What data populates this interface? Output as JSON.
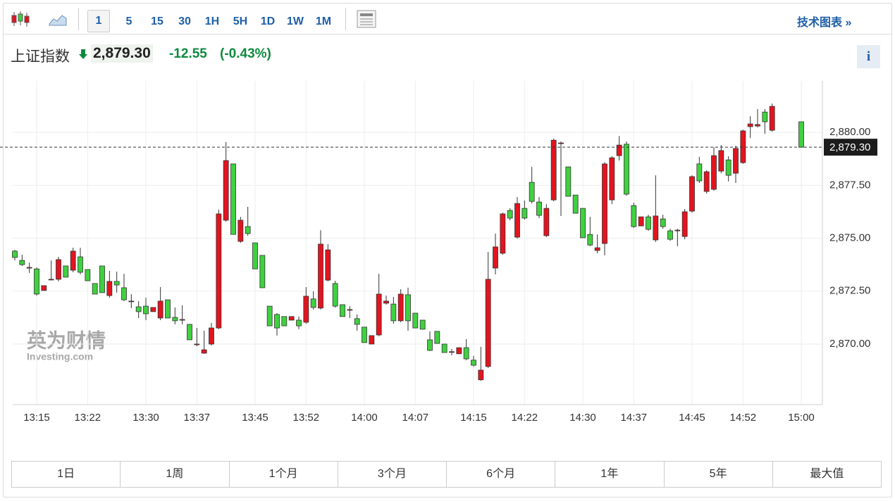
{
  "toolbar": {
    "intervals": [
      "1",
      "5",
      "15",
      "30",
      "1H",
      "5H",
      "1D",
      "1W",
      "1M"
    ],
    "link": "技术图表 »"
  },
  "header": {
    "name": "上证指数",
    "change": "-12.55",
    "change_pct": "(-0.43%)",
    "info": "i"
  },
  "watermark": {
    "brand": "英为财情",
    "site": "Investing.com"
  },
  "chart_data": {
    "type": "candlestick",
    "categories": [
      null,
      null,
      null,
      "13:15",
      null,
      null,
      null,
      null,
      null,
      null,
      "13:22",
      null,
      null,
      null,
      null,
      null,
      null,
      null,
      "13:30",
      null,
      null,
      null,
      null,
      null,
      null,
      "13:37",
      null,
      null,
      null,
      null,
      null,
      null,
      null,
      "13:45",
      null,
      null,
      null,
      null,
      null,
      null,
      "13:52",
      null,
      null,
      null,
      null,
      null,
      null,
      null,
      "14:00",
      null,
      null,
      null,
      null,
      null,
      null,
      "14:07",
      null,
      null,
      null,
      null,
      null,
      null,
      null,
      "14:15",
      null,
      null,
      null,
      null,
      null,
      null,
      "14:22",
      null,
      null,
      null,
      null,
      null,
      null,
      null,
      "14:30",
      null,
      null,
      null,
      null,
      null,
      null,
      "14:37",
      null,
      null,
      null,
      null,
      null,
      null,
      null,
      "14:45",
      null,
      null,
      null,
      null,
      null,
      null,
      "14:52",
      null,
      null,
      null,
      null,
      null,
      null,
      null,
      "15:00"
    ],
    "open": [
      2874.39,
      2873.95,
      2873.62,
      2873.55,
      2872.53,
      2873.06,
      2873.06,
      2873.69,
      2873.49,
      2874.12,
      2873.52,
      2872.86,
      2873.69,
      2872.29,
      2872.96,
      2872.66,
      2872.03,
      2871.76,
      2871.79,
      2871.53,
      2871.23,
      2872.09,
      2871.26,
      2871.16,
      2870.93,
      2870.0,
      2869.57,
      2870.0,
      2870.76,
      2875.85,
      2878.51,
      2874.85,
      2875.55,
      2874.78,
      2874.19,
      2871.79,
      2871.4,
      2871.3,
      2871.13,
      2871.13,
      2871.03,
      2872.13,
      2871.7,
      2873.02,
      2872.86,
      2871.86,
      2871.63,
      2871.2,
      2870.8,
      2870.0,
      2870.43,
      2871.93,
      2871.89,
      2871.1,
      2872.33,
      2871.46,
      2871.13,
      2870.2,
      2870.6,
      2870.0,
      2869.64,
      2869.54,
      2869.83,
      2869.24,
      2868.31,
      2868.94,
      2873.59,
      2874.29,
      2876.31,
      2875.05,
      2876.41,
      2877.64,
      2876.71,
      2875.12,
      2876.81,
      2879.5,
      2878.37,
      2877.04,
      2876.41,
      2875.18,
      2874.42,
      2874.75,
      2876.81,
      2878.9,
      2879.44,
      2876.54,
      2875.58,
      2876.01,
      2874.92,
      2875.91,
      2875.35,
      2875.38,
      2875.08,
      2876.28,
      2878.51,
      2877.21,
      2877.31,
      2878.17,
      2878.7,
      2878.07,
      2878.57,
      2880.27,
      2880.3,
      2880.96,
      2880.1,
      null,
      null,
      null,
      2880.5
    ],
    "high": [
      2874.45,
      2874.22,
      2873.85,
      2873.62,
      2872.76,
      2873.95,
      2874.12,
      2873.69,
      2874.55,
      2874.55,
      2873.52,
      2872.86,
      2873.69,
      2873.46,
      2873.42,
      2873.32,
      2872.36,
      2872.03,
      2872.19,
      2871.73,
      2872.69,
      2872.09,
      2871.73,
      2871.83,
      2870.93,
      2870.76,
      2870.63,
      2871.0,
      2876.35,
      2879.54,
      2878.51,
      2876.01,
      2876.48,
      2874.78,
      2874.19,
      2871.79,
      2871.46,
      2871.3,
      2871.3,
      2871.3,
      2872.69,
      2872.49,
      2875.38,
      2874.72,
      2872.99,
      2871.86,
      2871.79,
      2871.4,
      2870.8,
      2870.4,
      2873.32,
      2872.29,
      2872.23,
      2872.59,
      2872.66,
      2871.46,
      2871.13,
      2870.6,
      2870.6,
      2870.0,
      2869.77,
      2869.83,
      2870.23,
      2869.44,
      2869.87,
      2874.35,
      2875.22,
      2876.21,
      2876.41,
      2876.94,
      2876.78,
      2878.37,
      2876.94,
      2876.61,
      2879.7,
      2879.57,
      2878.37,
      2877.04,
      2876.41,
      2876.01,
      2875.18,
      2878.6,
      2878.87,
      2879.83,
      2879.57,
      2876.68,
      2876.01,
      2876.11,
      2877.97,
      2876.11,
      2875.45,
      2875.45,
      2876.38,
      2877.97,
      2878.84,
      2878.21,
      2879.3,
      2879.4,
      2878.87,
      2879.37,
      2880.13,
      2880.76,
      2881.1,
      2881.1,
      2881.36,
      null,
      null,
      null,
      2880.5
    ],
    "low": [
      2873.95,
      2873.69,
      2873.36,
      2872.29,
      2872.53,
      2873.02,
      2872.96,
      2873.16,
      2873.39,
      2873.29,
      2872.99,
      2872.36,
      2872.43,
      2872.19,
      2872.43,
      2872.03,
      2871.7,
      2871.23,
      2871.13,
      2871.53,
      2871.13,
      2871.23,
      2870.93,
      2870.93,
      2870.2,
      2869.9,
      2869.54,
      2869.93,
      2870.7,
      2875.78,
      2875.18,
      2874.78,
      2875.12,
      2873.55,
      2872.66,
      2870.86,
      2870.4,
      2870.86,
      2871.13,
      2870.7,
      2870.96,
      2871.63,
      2871.63,
      2872.96,
      2871.73,
      2871.3,
      2871.23,
      2870.63,
      2870.07,
      2870.0,
      2870.37,
      2871.86,
      2870.96,
      2871.03,
      2870.63,
      2870.76,
      2870.7,
      2869.67,
      2870.03,
      2869.6,
      2869.47,
      2869.54,
      2869.24,
      2868.94,
      2868.27,
      2868.87,
      2873.29,
      2874.22,
      2875.85,
      2874.98,
      2875.88,
      2876.64,
      2875.95,
      2875.05,
      2876.74,
      2876.05,
      2876.98,
      2876.18,
      2875.02,
      2874.62,
      2874.29,
      2874.19,
      2876.61,
      2878.67,
      2877.01,
      2875.48,
      2875.58,
      2875.35,
      2874.82,
      2875.45,
      2874.88,
      2874.62,
      2874.95,
      2876.21,
      2877.61,
      2877.11,
      2877.24,
      2878.07,
      2877.68,
      2877.61,
      2878.51,
      2879.73,
      2880.23,
      2879.93,
      2880.03,
      null,
      null,
      null,
      2879.3
    ],
    "close": [
      2874.09,
      2873.75,
      2873.62,
      2872.36,
      2872.76,
      2873.06,
      2873.99,
      2873.16,
      2874.39,
      2873.39,
      2872.99,
      2872.36,
      2872.43,
      2872.96,
      2872.79,
      2872.09,
      2872.03,
      2871.53,
      2871.43,
      2871.73,
      2872.03,
      2871.23,
      2871.1,
      2871.16,
      2870.2,
      2870.0,
      2869.73,
      2870.76,
      2876.15,
      2878.67,
      2875.18,
      2875.85,
      2875.22,
      2873.55,
      2872.66,
      2870.86,
      2870.76,
      2870.86,
      2871.3,
      2870.86,
      2872.26,
      2871.73,
      2874.72,
      2874.45,
      2871.79,
      2871.3,
      2871.63,
      2870.93,
      2870.07,
      2870.4,
      2872.36,
      2872.03,
      2871.1,
      2872.36,
      2871.1,
      2870.76,
      2870.7,
      2869.7,
      2870.03,
      2869.6,
      2869.64,
      2869.83,
      2869.3,
      2869.0,
      2868.77,
      2873.06,
      2874.59,
      2876.15,
      2875.95,
      2876.64,
      2875.95,
      2876.74,
      2876.08,
      2876.41,
      2879.63,
      2879.5,
      2876.98,
      2876.18,
      2875.02,
      2874.68,
      2874.55,
      2878.51,
      2878.8,
      2879.4,
      2877.08,
      2875.55,
      2876.01,
      2875.42,
      2876.05,
      2875.55,
      2874.95,
      2875.38,
      2876.25,
      2877.91,
      2877.71,
      2878.14,
      2878.9,
      2879.14,
      2877.97,
      2879.24,
      2880.07,
      2880.4,
      2880.37,
      2880.5,
      2881.23,
      null,
      null,
      null,
      2879.3
    ],
    "up_color": "#e3141f",
    "down_color": "#3fd13f",
    "ylim": [
      2867.14,
      2882.43
    ],
    "yticks": [
      {
        "value": 2870,
        "label": "2,870.00"
      },
      {
        "value": 2872.5,
        "label": "2,872.50"
      },
      {
        "value": 2875,
        "label": "2,875.00"
      },
      {
        "value": 2877.5,
        "label": "2,877.50"
      },
      {
        "value": 2880,
        "label": "2,880.00"
      }
    ],
    "grid": true,
    "current_price": {
      "value": 2879.3,
      "label": "2,879.30"
    }
  },
  "periods": [
    "1日",
    "1周",
    "1个月",
    "3个月",
    "6个月",
    "1年",
    "5年",
    "最大值"
  ]
}
